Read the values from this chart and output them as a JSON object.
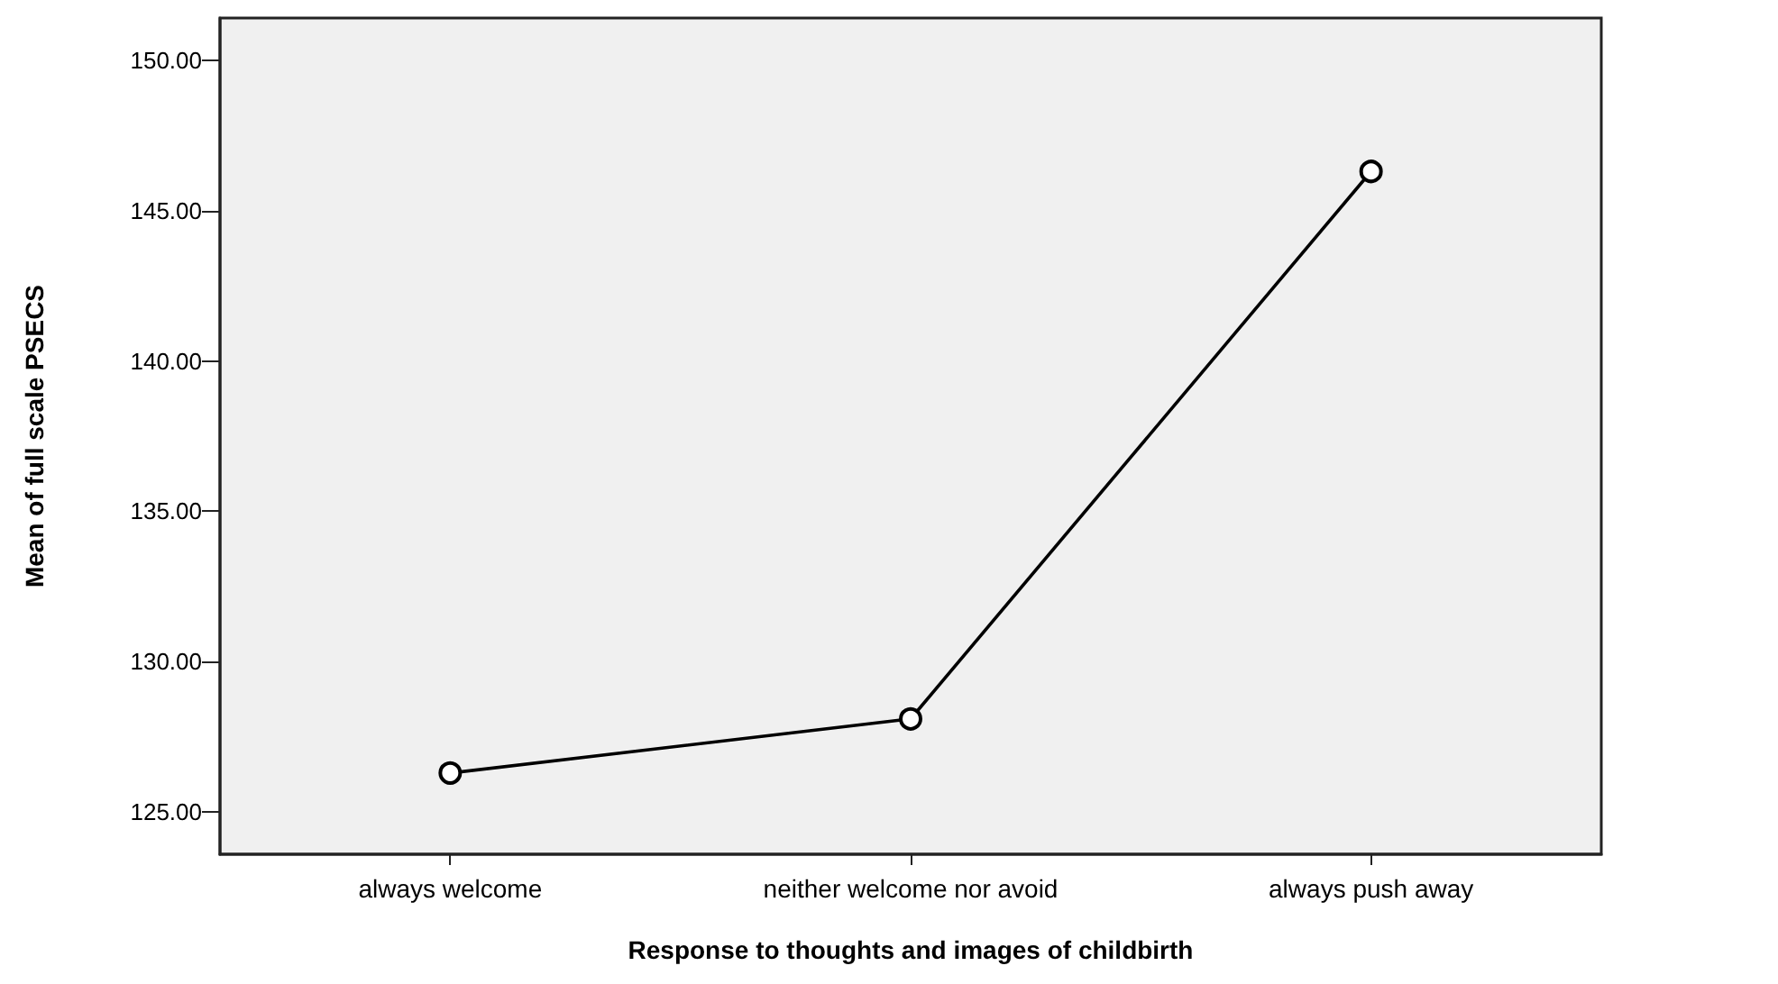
{
  "chart_data": {
    "type": "line",
    "xlabel": "Response to thoughts and images of childbirth",
    "ylabel": "Mean of full scale PSECS",
    "categories": [
      "always welcome",
      "neither welcome nor avoid",
      "always push away"
    ],
    "values": [
      126.3,
      128.1,
      146.3
    ],
    "color": "#000000",
    "ylim": [
      123.6,
      151.4
    ],
    "yticks": [
      {
        "value": 125,
        "label": "125.00"
      },
      {
        "value": 130,
        "label": "130.00"
      },
      {
        "value": 135,
        "label": "135.00"
      },
      {
        "value": 140,
        "label": "140.00"
      },
      {
        "value": 145,
        "label": "145.00"
      },
      {
        "value": 150,
        "label": "150.00"
      }
    ],
    "grid": false,
    "marker": "circle",
    "line_style": "solid"
  }
}
